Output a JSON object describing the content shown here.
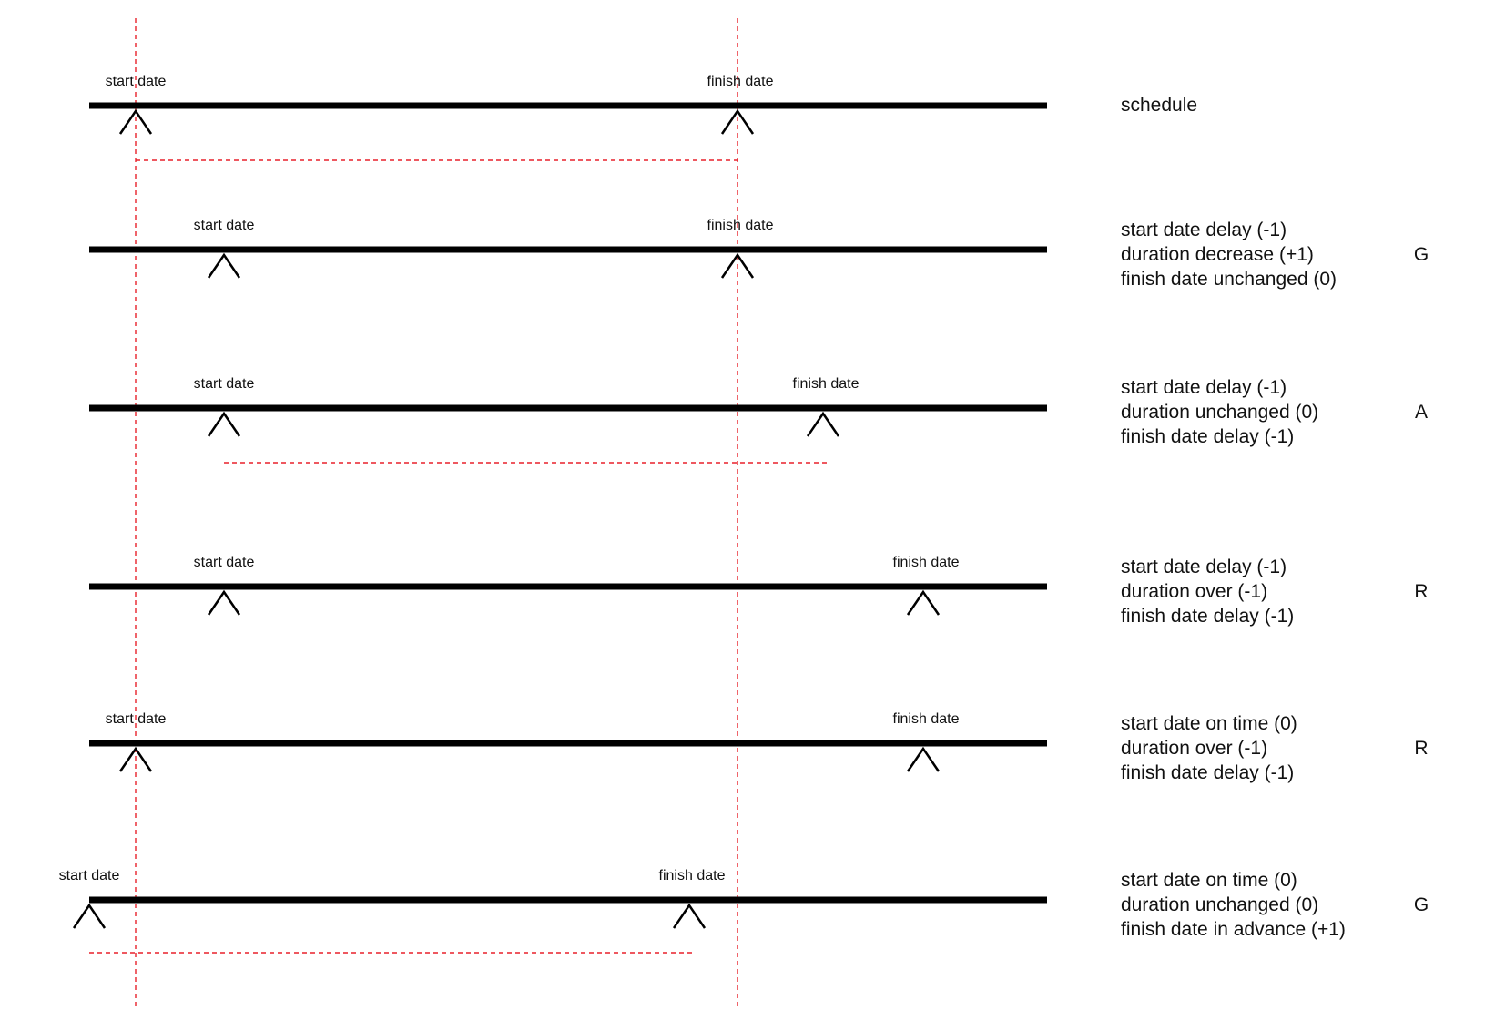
{
  "colors": {
    "timeline": "#000000",
    "reference_line": "#e8212b",
    "text": "#111111"
  },
  "scenarios": [
    {
      "start": {
        "label": "start date",
        "pos": "baseline"
      },
      "finish": {
        "label": "finish date",
        "pos": "baseline"
      },
      "duration_bracket": true,
      "description": [
        "schedule"
      ],
      "status": ""
    },
    {
      "start": {
        "label": "start date",
        "pos": "late"
      },
      "finish": {
        "label": "finish date",
        "pos": "baseline"
      },
      "duration_bracket": false,
      "description": [
        "start date delay (-1)",
        "duration decrease (+1)",
        "finish date unchanged (0)"
      ],
      "status": "G"
    },
    {
      "start": {
        "label": "start date",
        "pos": "late"
      },
      "finish": {
        "label": "finish date",
        "pos": "late"
      },
      "duration_bracket": true,
      "description": [
        "start date delay (-1)",
        "duration unchanged (0)",
        "finish date delay (-1)"
      ],
      "status": "A"
    },
    {
      "start": {
        "label": "start date",
        "pos": "late"
      },
      "finish": {
        "label": "finish date",
        "pos": "very-late"
      },
      "duration_bracket": false,
      "description": [
        "start date delay (-1)",
        "duration over (-1)",
        "finish date delay (-1)"
      ],
      "status": "R"
    },
    {
      "start": {
        "label": "start date",
        "pos": "baseline"
      },
      "finish": {
        "label": "finish date",
        "pos": "very-late"
      },
      "duration_bracket": false,
      "description": [
        "start date on time (0)",
        "duration over (-1)",
        "finish date delay (-1)"
      ],
      "status": "R"
    },
    {
      "start": {
        "label": "start date",
        "pos": "early"
      },
      "finish": {
        "label": "finish date",
        "pos": "early"
      },
      "duration_bracket": true,
      "description": [
        "start date on time (0)",
        "duration unchanged (0)",
        "finish date in advance (+1)"
      ],
      "status": "G"
    }
  ]
}
